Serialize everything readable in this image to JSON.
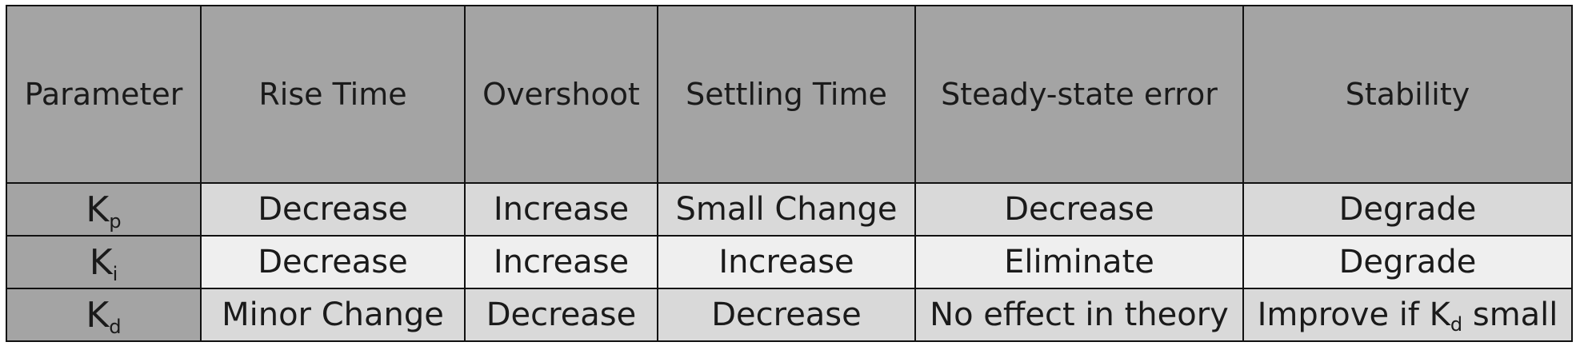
{
  "table": {
    "headers": [
      "Parameter",
      "Rise Time",
      "Overshoot",
      "Settling Time",
      "Steady-state error",
      "Stability"
    ],
    "rows": [
      {
        "param_base": "K",
        "param_sub": "p",
        "cells": [
          "Decrease",
          "Increase",
          "Small Change",
          "Decrease",
          "Degrade"
        ]
      },
      {
        "param_base": "K",
        "param_sub": "i",
        "cells": [
          "Decrease",
          "Increase",
          "Increase",
          "Eliminate",
          "Degrade"
        ]
      },
      {
        "param_base": "K",
        "param_sub": "d",
        "cells": [
          "Minor Change",
          "Decrease",
          "Decrease",
          "No effect in theory"
        ],
        "stability": {
          "before": "Improve if K",
          "sub": "d",
          "after": " small"
        }
      }
    ]
  }
}
